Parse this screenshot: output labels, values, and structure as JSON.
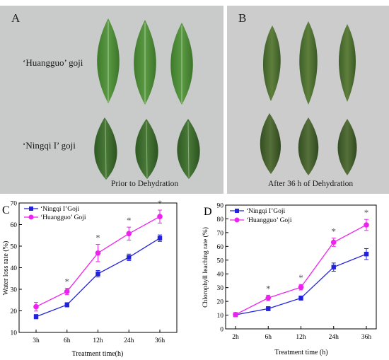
{
  "photos": {
    "panel_a": {
      "letter": "A",
      "label_top": "‘Huangguo’ goji",
      "label_bottom": "‘Ningqi I’ goji",
      "caption": "Prior to Dehydration"
    },
    "panel_b": {
      "letter": "B",
      "caption": "After 36 h of Dehydration"
    }
  },
  "colors": {
    "series_ningqi": "#2222dd",
    "series_huangguo": "#ee22ee",
    "fresh_leaf": "#4f8a3a",
    "dry_leaf": "#4b6a30",
    "background_photo": "#c9cbcb"
  },
  "chart_data": [
    {
      "panel": "C",
      "type": "line",
      "categories": [
        "3h",
        "6h",
        "12h",
        "24h",
        "36h"
      ],
      "xlabel": "Treatment time(h)",
      "ylabel": "Water loss rate (%)",
      "ylim": [
        10,
        70
      ],
      "yticks": [
        "10",
        "20",
        "30",
        "40",
        "50",
        "60",
        "70"
      ],
      "legend_position": "top-left",
      "significance_marker": "*",
      "significant": [
        false,
        true,
        true,
        true,
        true
      ],
      "series": [
        {
          "name": "‘Ningqi I’Goji",
          "marker": "square",
          "values": [
            17.3,
            22.8,
            37.2,
            44.8,
            53.7
          ],
          "errors": [
            1.0,
            1.0,
            1.5,
            1.5,
            1.5
          ]
        },
        {
          "name": "‘Huangguo’ Goji",
          "marker": "circle",
          "values": [
            21.9,
            29.0,
            46.8,
            55.8,
            63.7
          ],
          "errors": [
            2.0,
            1.5,
            4.0,
            3.0,
            3.0
          ]
        }
      ]
    },
    {
      "panel": "D",
      "type": "line",
      "categories": [
        "2h",
        "6h",
        "12h",
        "24h",
        "36h"
      ],
      "xlabel": "Treatment time (h)",
      "ylabel": "Chlorophyll leaching rate (%)",
      "ylim": [
        0,
        90
      ],
      "yticks": [
        "0",
        "10",
        "20",
        "30",
        "40",
        "50",
        "60",
        "70",
        "80",
        "90"
      ],
      "legend_position": "top-left",
      "significance_marker": "*",
      "significant": [
        false,
        true,
        true,
        true,
        true
      ],
      "series": [
        {
          "name": "‘Ningqi I’Goji",
          "marker": "square",
          "values": [
            10.2,
            14.7,
            22.4,
            44.9,
            54.4
          ],
          "errors": [
            1.0,
            1.5,
            1.5,
            3.0,
            4.0
          ]
        },
        {
          "name": "‘Huangguo’ Goji",
          "marker": "circle",
          "values": [
            10.4,
            22.5,
            30.3,
            63.0,
            75.6
          ],
          "errors": [
            1.5,
            2.0,
            2.0,
            3.0,
            4.0
          ]
        }
      ]
    }
  ]
}
